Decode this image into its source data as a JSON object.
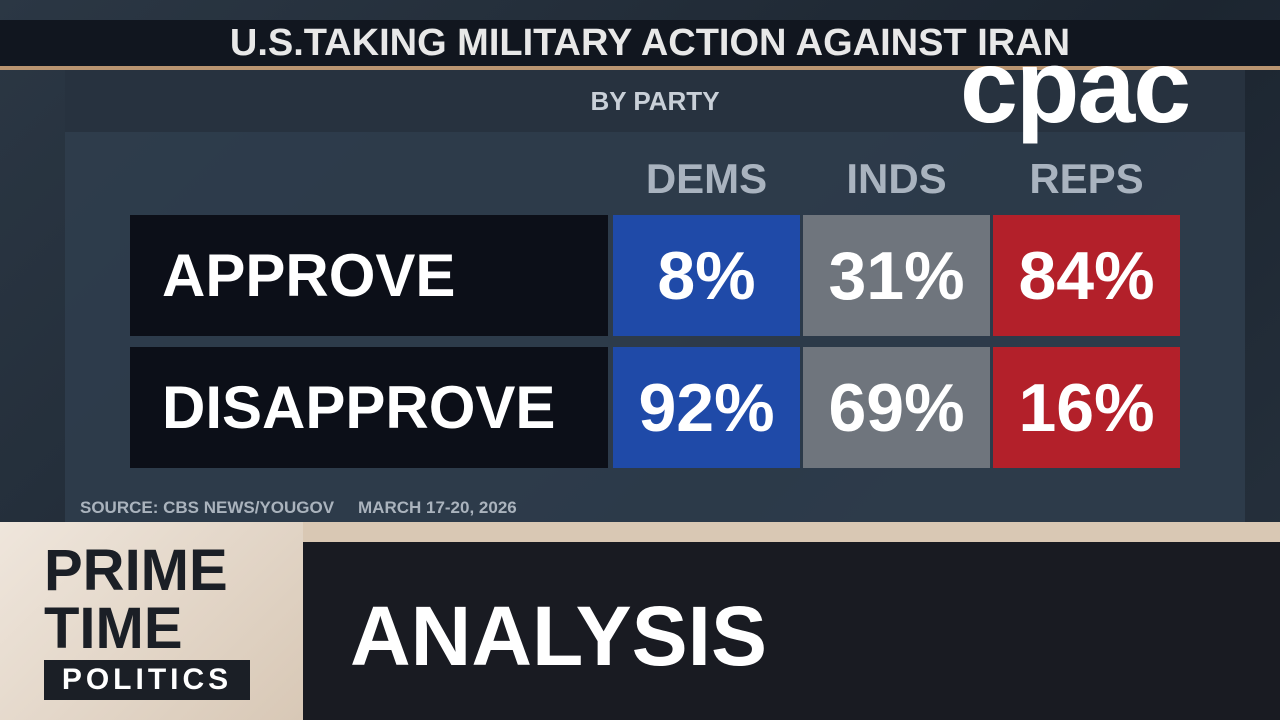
{
  "header": {
    "title": "U.S.TAKING MILITARY ACTION AGAINST IRAN",
    "subtitle": "BY PARTY"
  },
  "logo": "cpac",
  "table": {
    "columns": [
      "DEMS",
      "INDS",
      "REPS"
    ],
    "rows": [
      [
        "APPROVE",
        "8%",
        "31%",
        "84%"
      ],
      [
        "DISAPPROVE",
        "92%",
        "69%",
        "16%"
      ]
    ]
  },
  "footer": {
    "source": "SOURCE: CBS NEWS/YOUGOV",
    "date": "MARCH 17-20, 2026"
  },
  "lower_third": {
    "show": [
      "PRIME",
      "TIME",
      "POLITICS"
    ],
    "segment": "ANALYSIS"
  }
}
